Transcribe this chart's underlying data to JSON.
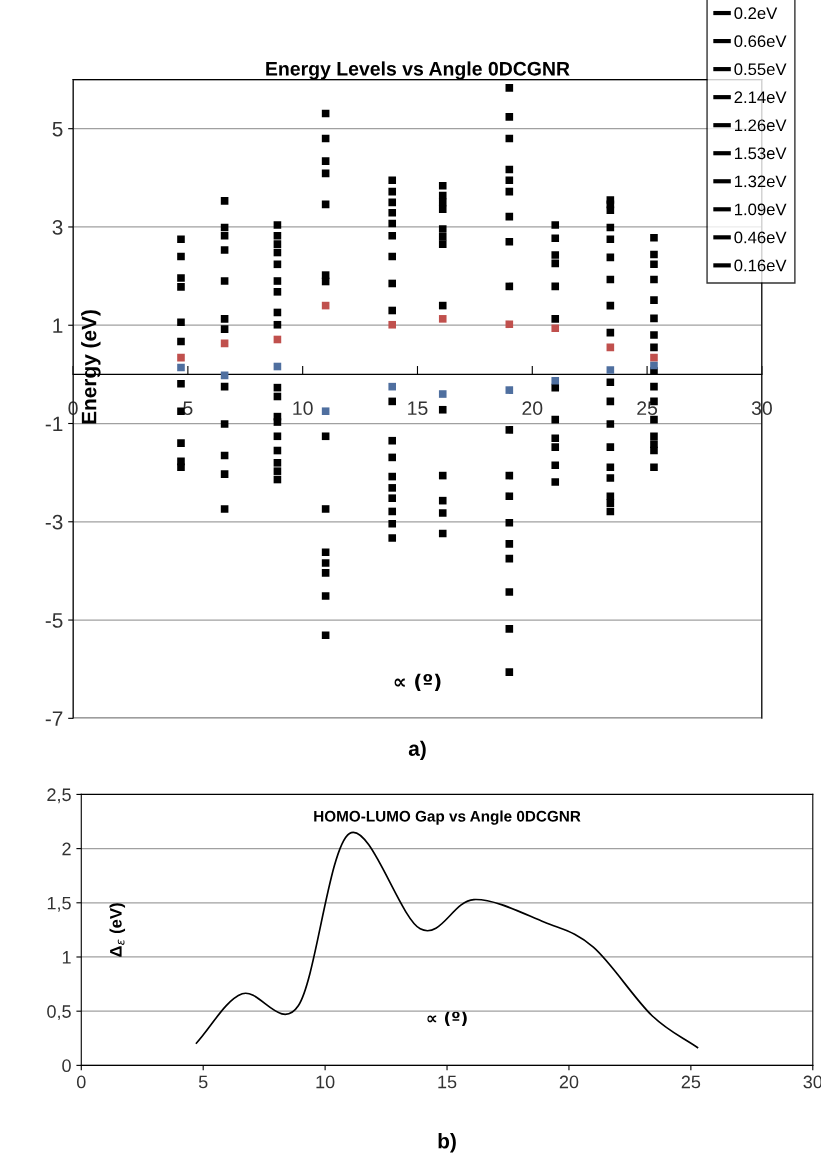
{
  "chart_data": [
    {
      "type": "scatter",
      "title": "Energy Levels vs Angle 0DCGNR",
      "ylabel": "Energy (eV)",
      "xlabel": "∝ (º)",
      "annotations": [
        "a)"
      ],
      "xlim": [
        0,
        30
      ],
      "xticks": [
        0,
        5,
        10,
        15,
        20,
        25,
        30
      ],
      "ylim": [
        -7,
        6
      ],
      "yticks": [
        -7,
        -5,
        -3,
        -1,
        1,
        3,
        5
      ],
      "grid": "y",
      "legend": "top right",
      "marker": "square",
      "series": [
        {
          "name": "0.2eV",
          "color": "#000000",
          "x": [
            4.7,
            4.7,
            4.7,
            4.7,
            4.7,
            4.7,
            4.7,
            4.7,
            4.7,
            4.7,
            4.7
          ],
          "values": [
            2.75,
            2.4,
            1.96,
            1.78,
            1.06,
            0.67,
            -0.19,
            -0.75,
            -1.4,
            -1.77,
            -1.89
          ]
        },
        {
          "name": "0.66eV",
          "color": "#000000",
          "x": [
            6.6,
            6.6,
            6.6,
            6.6,
            6.6,
            6.6,
            6.6,
            6.6,
            6.6,
            6.6,
            6.6,
            6.6
          ],
          "values": [
            3.53,
            2.99,
            2.82,
            2.53,
            1.9,
            1.13,
            0.92,
            -0.25,
            -1.01,
            -1.65,
            -2.03,
            -2.74
          ]
        },
        {
          "name": "0.55eV",
          "color": "#000000",
          "x": [
            8.9,
            8.9,
            8.9,
            8.9,
            8.9,
            8.9,
            8.9,
            8.9,
            8.9,
            8.9,
            8.9,
            8.9,
            8.9,
            8.9,
            8.9,
            8.9,
            8.9,
            8.9
          ],
          "values": [
            3.04,
            2.82,
            2.65,
            2.48,
            2.24,
            1.9,
            1.68,
            1.26,
            1.01,
            -0.27,
            -0.45,
            -0.86,
            -0.97,
            -1.26,
            -1.55,
            -1.8,
            -1.97,
            -2.14
          ]
        },
        {
          "name": "2.14eV",
          "color": "#000000",
          "x": [
            11.0,
            11.0,
            11.0,
            11.0,
            11.0,
            11.0,
            11.0,
            11.0,
            11.0,
            11.0,
            11.0,
            11.0,
            11.0,
            11.0
          ],
          "values": [
            5.31,
            4.8,
            4.34,
            4.09,
            3.46,
            2.02,
            1.89,
            -1.26,
            -2.74,
            -3.62,
            -3.84,
            -4.04,
            -4.51,
            -5.31
          ]
        },
        {
          "name": "1.26eV",
          "color": "#000000",
          "x": [
            13.9,
            13.9,
            13.9,
            13.9,
            13.9,
            13.9,
            13.9,
            13.9,
            13.9,
            13.9,
            13.9,
            13.9,
            13.9,
            13.9,
            13.9,
            13.9,
            13.9,
            13.9
          ],
          "values": [
            3.95,
            3.72,
            3.5,
            3.29,
            3.07,
            2.82,
            2.4,
            1.85,
            1.3,
            -0.55,
            -1.35,
            -1.69,
            -2.08,
            -2.31,
            -2.52,
            -2.79,
            -3.04,
            -3.33
          ]
        },
        {
          "name": "1.53eV",
          "color": "#000000",
          "x": [
            16.1,
            16.1,
            16.1,
            16.1,
            16.1,
            16.1,
            16.1,
            16.1,
            16.1,
            16.1,
            16.1,
            16.1,
            16.1
          ],
          "values": [
            3.84,
            3.64,
            3.5,
            3.36,
            2.96,
            2.8,
            2.65,
            1.4,
            -0.72,
            -2.06,
            -2.57,
            -2.82,
            -3.24
          ]
        },
        {
          "name": "1.32eV",
          "color": "#000000",
          "x": [
            19.0,
            19.0,
            19.0,
            19.0,
            19.0,
            19.0,
            19.0,
            19.0,
            19.0,
            19.0,
            19.0,
            19.0,
            19.0,
            19.0,
            19.0,
            19.0,
            19.0,
            19.0
          ],
          "values": [
            5.83,
            5.24,
            4.8,
            4.17,
            3.95,
            3.72,
            3.21,
            2.7,
            1.79,
            -1.13,
            -2.06,
            -2.48,
            -3.02,
            -3.45,
            -3.75,
            -4.43,
            -5.18,
            -6.06
          ]
        },
        {
          "name": "1.09eV",
          "color": "#000000",
          "x": [
            21.0,
            21.0,
            21.0,
            21.0,
            21.0,
            21.0,
            21.0,
            21.0,
            21.0,
            21.0,
            21.0,
            21.0
          ],
          "values": [
            3.04,
            2.77,
            2.43,
            2.26,
            1.79,
            1.13,
            -0.27,
            -0.92,
            -1.3,
            -1.48,
            -1.85,
            -2.19
          ]
        },
        {
          "name": "0.46eV",
          "color": "#000000",
          "x": [
            23.4,
            23.4,
            23.4,
            23.4,
            23.4,
            23.4,
            23.4,
            23.4,
            23.4,
            23.4,
            23.4,
            23.4,
            23.4,
            23.4,
            23.4,
            23.4,
            23.4,
            23.4
          ],
          "values": [
            3.55,
            3.46,
            3.34,
            2.99,
            2.75,
            2.38,
            1.93,
            1.4,
            0.85,
            -0.16,
            -0.55,
            -1.01,
            -1.48,
            -1.89,
            -2.11,
            -2.48,
            -2.62,
            -2.79
          ]
        },
        {
          "name": "0.16eV",
          "color": "#000000",
          "x": [
            25.3,
            25.3,
            25.3,
            25.3,
            25.3,
            25.3,
            25.3,
            25.3,
            25.3,
            25.3,
            25.3,
            25.3,
            25.3,
            25.3,
            25.3,
            25.3
          ],
          "values": [
            2.78,
            2.44,
            2.24,
            1.93,
            1.51,
            1.14,
            0.8,
            0.55,
            0.07,
            -0.25,
            -0.55,
            -0.92,
            -1.26,
            -1.42,
            -1.55,
            -1.89
          ]
        },
        {
          "color": "#c0504d",
          "x": [
            4.7,
            6.6,
            8.9,
            11.0,
            13.9,
            16.1,
            19.0,
            21.0,
            23.4,
            25.3
          ],
          "values": [
            0.34,
            0.63,
            0.71,
            1.4,
            1.01,
            1.13,
            1.02,
            0.94,
            0.55,
            0.34
          ]
        },
        {
          "color": "#4f6f9f",
          "x": [
            4.7,
            6.6,
            8.9,
            11.0,
            13.9,
            16.1,
            19.0,
            21.0,
            23.4,
            25.3
          ],
          "values": [
            0.14,
            -0.02,
            0.16,
            -0.75,
            -0.25,
            -0.4,
            -0.32,
            -0.13,
            0.09,
            0.18
          ]
        }
      ]
    },
    {
      "type": "line",
      "title": "HOMO-LUMO Gap vs Angle 0DCGNR",
      "ylabel": "Δ$_{ε}$ (eV)",
      "xlabel": "∝ (º)",
      "annotations": [
        "b)"
      ],
      "xlim": [
        0,
        30
      ],
      "xticks": [
        0,
        5,
        10,
        15,
        20,
        25,
        30
      ],
      "ylim": [
        0,
        2.5
      ],
      "yticks": [
        0,
        {
          "value": 0.5,
          "label": "0,5"
        },
        1,
        {
          "value": 1.5,
          "label": "1,5"
        },
        2,
        {
          "value": 2.5,
          "label": "2,5"
        }
      ],
      "grid": "y",
      "series": [
        {
          "color": "#000000",
          "x": [
            4.7,
            6.6,
            8.9,
            11.0,
            13.9,
            16.1,
            19.0,
            21.0,
            23.4,
            25.3
          ],
          "values": [
            0.2,
            0.66,
            0.55,
            2.14,
            1.26,
            1.53,
            1.32,
            1.09,
            0.46,
            0.16
          ]
        }
      ]
    }
  ]
}
